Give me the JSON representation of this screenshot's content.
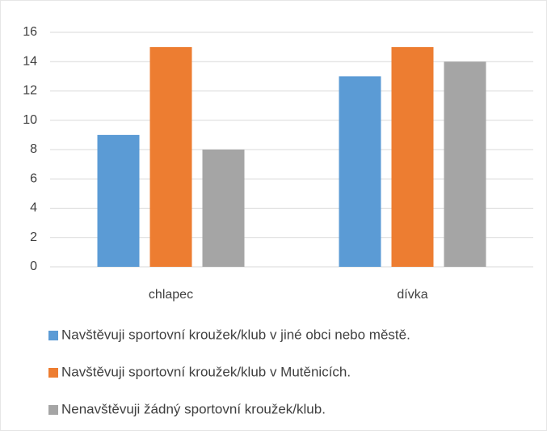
{
  "chart_data": {
    "type": "bar",
    "categories": [
      "chlapec",
      "dívka"
    ],
    "series": [
      {
        "name": "Navštěvuji sportovní kroužek/klub v jiné obci nebo městě.",
        "color": "#5b9bd5",
        "values": [
          9,
          13
        ]
      },
      {
        "name": "Navštěvuji sportovní kroužek/klub v Mutěnicích.",
        "color": "#ed7d31",
        "values": [
          15,
          15
        ]
      },
      {
        "name": "Nenavštěvuji žádný sportovní kroužek/klub.",
        "color": "#a5a5a5",
        "values": [
          8,
          14
        ]
      }
    ],
    "ylim": [
      0,
      16
    ],
    "yticks": [
      0,
      2,
      4,
      6,
      8,
      10,
      12,
      14,
      16
    ],
    "grid": true,
    "legend": "bottom"
  }
}
